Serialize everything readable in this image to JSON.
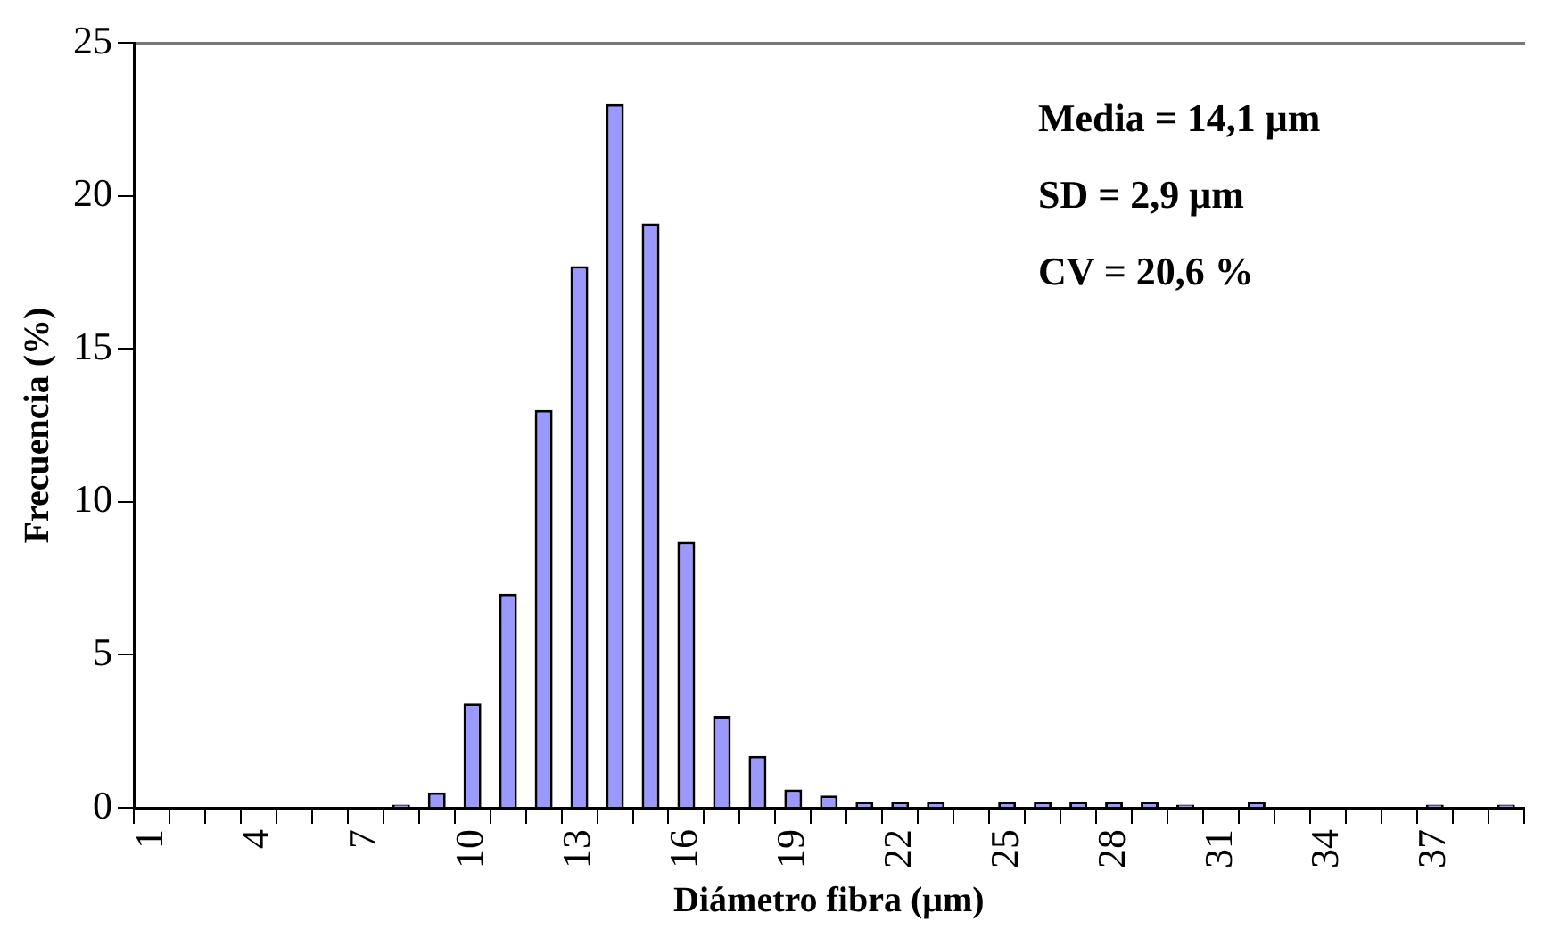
{
  "chart_data": {
    "type": "bar",
    "xlabel": "Diámetro fibra (μm)",
    "ylabel": "Frecuencia (%)",
    "categories": [
      "1",
      null,
      null,
      "4",
      null,
      null,
      "7",
      null,
      null,
      "10",
      null,
      null,
      "13",
      null,
      null,
      "16",
      null,
      null,
      "19",
      null,
      null,
      "22",
      null,
      null,
      "25",
      null,
      null,
      "28",
      null,
      null,
      "31",
      null,
      null,
      "34",
      null,
      null,
      "37",
      null,
      null
    ],
    "values": [
      0,
      0,
      0,
      0,
      0,
      0,
      0,
      0.1,
      0.5,
      3.4,
      7.0,
      13.0,
      17.7,
      23.0,
      19.1,
      8.7,
      3.0,
      1.7,
      0.6,
      0.4,
      0.2,
      0.2,
      0.2,
      0,
      0.2,
      0.2,
      0.2,
      0.2,
      0.2,
      0.1,
      0,
      0.2,
      0,
      0,
      0,
      0,
      0.1,
      0,
      0.1
    ],
    "color": "#9999ff",
    "ylim": [
      0,
      25
    ],
    "yticks": [
      0,
      5,
      10,
      15,
      20,
      25
    ],
    "grid": false,
    "legend": false,
    "annotations": [
      "Media = 14,1 μm",
      "SD = 2,9 μm",
      "CV = 20,6 %"
    ]
  }
}
